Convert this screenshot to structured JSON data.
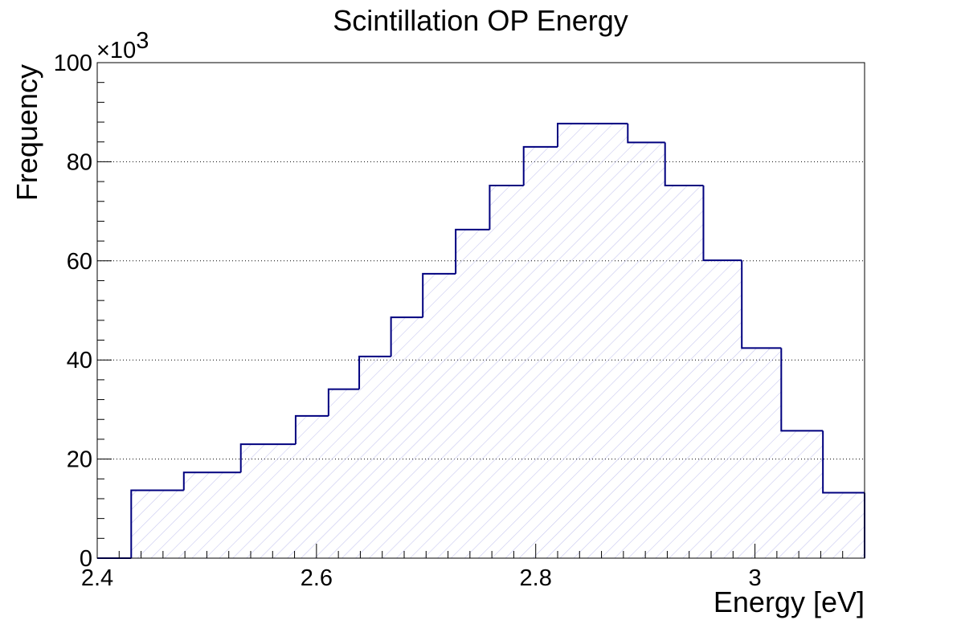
{
  "chart_data": {
    "type": "histogram",
    "title": "Scintillation OP Energy",
    "xlabel": "Energy [eV]",
    "ylabel": "Frequency",
    "y_multiplier_label": "×10",
    "y_multiplier_exponent": "3",
    "xlim": [
      2.4,
      3.1
    ],
    "ylim": [
      0,
      100000
    ],
    "x_ticks": [
      2.4,
      2.6,
      2.8,
      3.0
    ],
    "x_tick_labels": [
      "2.4",
      "2.6",
      "2.8",
      "3"
    ],
    "y_ticks": [
      0,
      20000,
      40000,
      60000,
      80000,
      100000
    ],
    "y_tick_labels": [
      "0",
      "20",
      "40",
      "60",
      "80",
      "100"
    ],
    "grid": "horizontal dotted",
    "line_color": "#00007f",
    "fill": "diagonal hatch",
    "fill_color": "#c8c8f0",
    "steps": [
      {
        "x0": 2.4,
        "x1": 2.431,
        "y": 0
      },
      {
        "x0": 2.431,
        "x1": 2.479,
        "y": 13700
      },
      {
        "x0": 2.479,
        "x1": 2.531,
        "y": 17300
      },
      {
        "x0": 2.531,
        "x1": 2.581,
        "y": 23000
      },
      {
        "x0": 2.581,
        "x1": 2.611,
        "y": 28700
      },
      {
        "x0": 2.611,
        "x1": 2.639,
        "y": 34100
      },
      {
        "x0": 2.639,
        "x1": 2.668,
        "y": 40700
      },
      {
        "x0": 2.668,
        "x1": 2.697,
        "y": 48600
      },
      {
        "x0": 2.697,
        "x1": 2.727,
        "y": 57400
      },
      {
        "x0": 2.727,
        "x1": 2.758,
        "y": 66300
      },
      {
        "x0": 2.758,
        "x1": 2.789,
        "y": 75200
      },
      {
        "x0": 2.789,
        "x1": 2.82,
        "y": 83000
      },
      {
        "x0": 2.82,
        "x1": 2.884,
        "y": 87700
      },
      {
        "x0": 2.884,
        "x1": 2.918,
        "y": 83900
      },
      {
        "x0": 2.918,
        "x1": 2.953,
        "y": 75200
      },
      {
        "x0": 2.953,
        "x1": 2.988,
        "y": 60100
      },
      {
        "x0": 2.988,
        "x1": 3.024,
        "y": 42400
      },
      {
        "x0": 3.024,
        "x1": 3.062,
        "y": 25700
      },
      {
        "x0": 3.062,
        "x1": 3.1,
        "y": 13200
      }
    ]
  }
}
